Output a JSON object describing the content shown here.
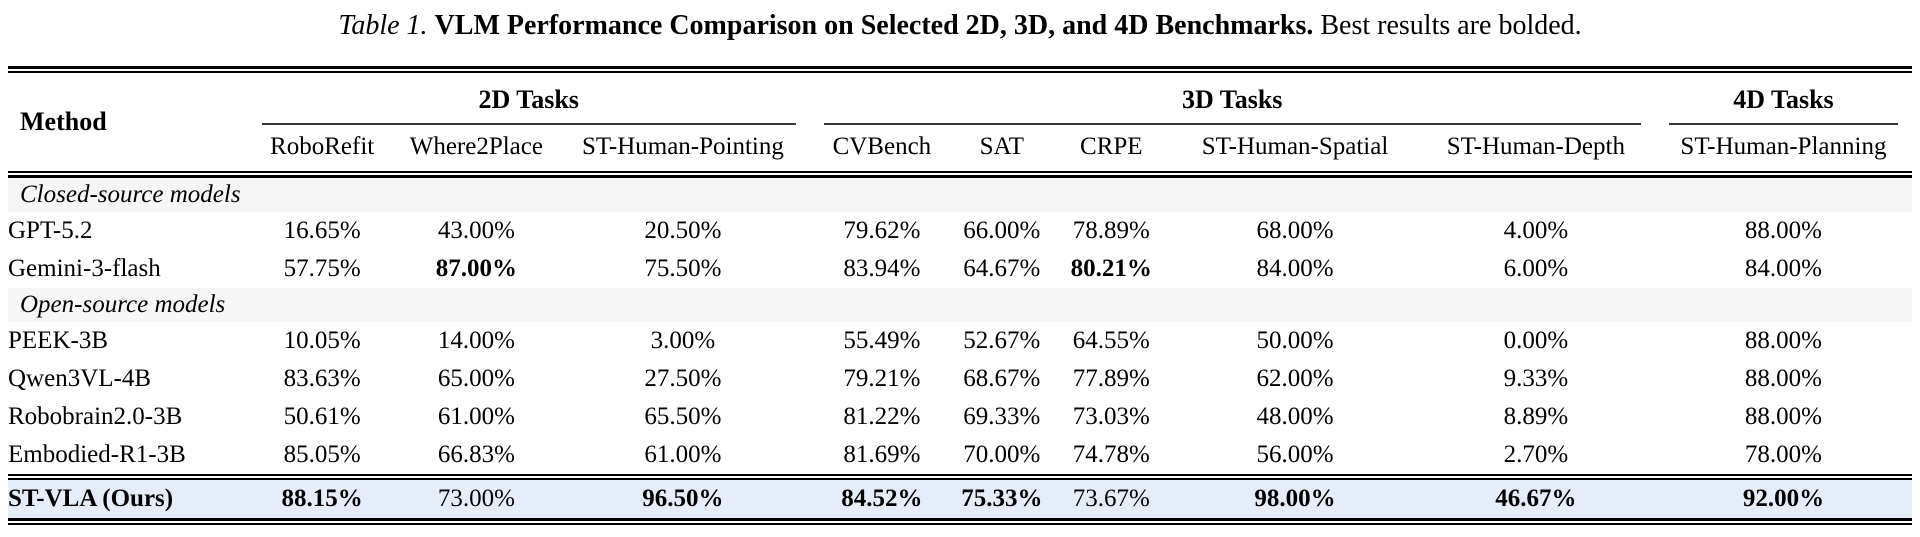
{
  "caption": {
    "label": "Table 1.",
    "title": "VLM Performance Comparison on Selected 2D, 3D, and 4D Benchmarks.",
    "note": "Best results are bolded."
  },
  "table": {
    "method_header": "Method",
    "groups": [
      {
        "label": "2D Tasks",
        "span": 3
      },
      {
        "label": "3D Tasks",
        "span": 5
      },
      {
        "label": "4D Tasks",
        "span": 1
      }
    ],
    "columns": [
      "RoboRefit",
      "Where2Place",
      "ST-Human-Pointing",
      "CVBench",
      "SAT",
      "CRPE",
      "ST-Human-Spatial",
      "ST-Human-Depth",
      "ST-Human-Planning"
    ],
    "sections": [
      {
        "title": "Closed-source models",
        "rows": [
          {
            "method": "GPT-5.2",
            "values": [
              "16.65%",
              "43.00%",
              "20.50%",
              "79.62%",
              "66.00%",
              "78.89%",
              "68.00%",
              "4.00%",
              "88.00%"
            ],
            "bold": []
          },
          {
            "method": "Gemini-3-flash",
            "values": [
              "57.75%",
              "87.00%",
              "75.50%",
              "83.94%",
              "64.67%",
              "80.21%",
              "84.00%",
              "6.00%",
              "84.00%"
            ],
            "bold": [
              1,
              5
            ]
          }
        ]
      },
      {
        "title": "Open-source models",
        "rows": [
          {
            "method": "PEEK-3B",
            "values": [
              "10.05%",
              "14.00%",
              "3.00%",
              "55.49%",
              "52.67%",
              "64.55%",
              "50.00%",
              "0.00%",
              "88.00%"
            ],
            "bold": []
          },
          {
            "method": "Qwen3VL-4B",
            "values": [
              "83.63%",
              "65.00%",
              "27.50%",
              "79.21%",
              "68.67%",
              "77.89%",
              "62.00%",
              "9.33%",
              "88.00%"
            ],
            "bold": []
          },
          {
            "method": "Robobrain2.0-3B",
            "values": [
              "50.61%",
              "61.00%",
              "65.50%",
              "81.22%",
              "69.33%",
              "73.03%",
              "48.00%",
              "8.89%",
              "88.00%"
            ],
            "bold": []
          },
          {
            "method": "Embodied-R1-3B",
            "values": [
              "85.05%",
              "66.83%",
              "61.00%",
              "81.69%",
              "70.00%",
              "74.78%",
              "56.00%",
              "2.70%",
              "78.00%"
            ],
            "bold": []
          }
        ]
      }
    ],
    "highlight_row": {
      "method": "ST-VLA (Ours)",
      "values": [
        "88.15%",
        "73.00%",
        "96.50%",
        "84.52%",
        "75.33%",
        "73.67%",
        "98.00%",
        "46.67%",
        "92.00%"
      ],
      "bold": [
        0,
        2,
        3,
        4,
        6,
        7,
        8
      ]
    }
  },
  "colors": {
    "highlight_bg": "#e6edfa",
    "section_bg": "#f6f6f6",
    "rule_color": "#000000",
    "cmidrule_color": "#3a3a3a"
  }
}
